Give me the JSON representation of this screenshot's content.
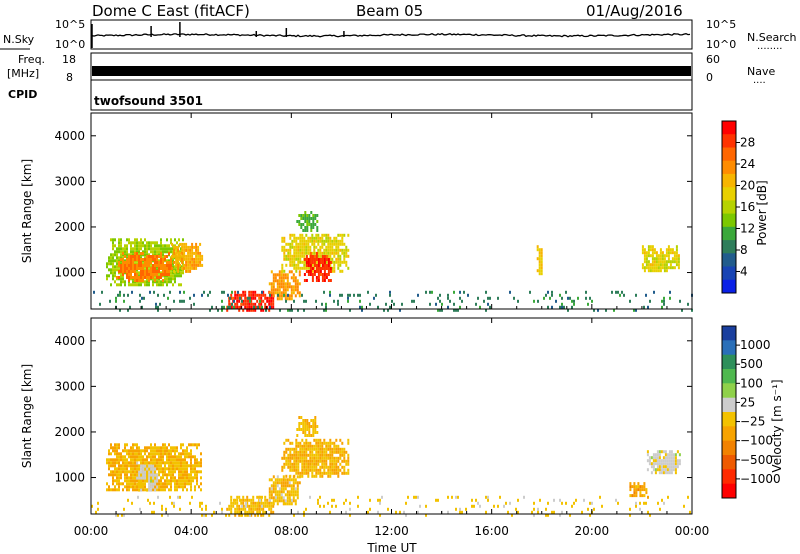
{
  "header": {
    "station": "Dome C East (fitACF)",
    "beam": "Beam 05",
    "date": "01/Aug/2016"
  },
  "strip_nsky": {
    "label": "N.Sky",
    "ticks": [
      "10^5",
      "10^0"
    ],
    "right_ticks": [
      "10^5",
      "10^0"
    ],
    "right_label": "N.Search",
    "right_dots": "........"
  },
  "strip_freq": {
    "label_line1": "Freq.",
    "label_line2": "[MHz]",
    "ticks": [
      "18",
      "8"
    ],
    "right_ticks": [
      "60",
      "0"
    ],
    "right_label": "Nave",
    "right_dots": "...."
  },
  "strip_cpid": {
    "label": "CPID",
    "program": "twofsound 3501"
  },
  "x_axis": {
    "label": "Time UT",
    "ticks": [
      "00:00",
      "04:00",
      "08:00",
      "12:00",
      "16:00",
      "20:00",
      "00:00"
    ]
  },
  "chart_data": [
    {
      "type": "heatmap",
      "quantity": "Power",
      "ylabel": "Slant Range [km]",
      "xlabel": "Time UT",
      "xlim_hours": [
        0,
        24
      ],
      "ylim_km": [
        200,
        4500
      ],
      "yticks": [
        "4000",
        "3000",
        "2000",
        "1000"
      ],
      "colorbar": {
        "label": "Power [dB]",
        "ticks": [
          "28",
          "24",
          "20",
          "16",
          "12",
          "8",
          "4"
        ],
        "range": [
          0,
          30
        ],
        "colors": [
          "#ff0000",
          "#ff3300",
          "#ff6600",
          "#ff8c00",
          "#f7b500",
          "#e8d000",
          "#b6d200",
          "#7cc800",
          "#3aa83a",
          "#2e7d5a",
          "#215c8c",
          "#1844b4",
          "#0a20e6"
        ]
      },
      "regions": [
        {
          "t0": 0.6,
          "t1": 3.7,
          "r0": 700,
          "r1": 1750,
          "v": 14
        },
        {
          "t0": 1.0,
          "t1": 3.2,
          "r0": 850,
          "r1": 1450,
          "v": 23
        },
        {
          "t0": 3.2,
          "t1": 4.4,
          "r0": 1050,
          "r1": 1650,
          "v": 20
        },
        {
          "t0": 5.4,
          "t1": 7.3,
          "r0": 200,
          "r1": 600,
          "v": 27
        },
        {
          "t0": 7.1,
          "t1": 8.3,
          "r0": 400,
          "r1": 1050,
          "v": 21
        },
        {
          "t0": 7.6,
          "t1": 10.3,
          "r0": 1050,
          "r1": 1850,
          "v": 17
        },
        {
          "t0": 8.5,
          "t1": 9.6,
          "r0": 850,
          "r1": 1450,
          "v": 27
        },
        {
          "t0": 8.2,
          "t1": 9.0,
          "r0": 1950,
          "r1": 2350,
          "v": 11
        },
        {
          "t0": 17.8,
          "t1": 18.0,
          "r0": 1000,
          "r1": 1600,
          "v": 18
        },
        {
          "t0": 22.0,
          "t1": 23.5,
          "r0": 1050,
          "r1": 1600,
          "v": 17
        },
        {
          "t0": 0.0,
          "t1": 24.0,
          "r0": 200,
          "r1": 600,
          "v": 8
        }
      ]
    },
    {
      "type": "heatmap",
      "quantity": "Velocity",
      "ylabel": "Slant Range [km]",
      "xlabel": "Time UT",
      "xlim_hours": [
        0,
        24
      ],
      "ylim_km": [
        200,
        4500
      ],
      "yticks": [
        "4000",
        "3000",
        "2000",
        "1000"
      ],
      "colorbar": {
        "label": "Velocity [m s⁻¹]",
        "ticks": [
          "1000",
          "500",
          "100",
          "25",
          "−25",
          "−100",
          "−500",
          "−1000"
        ],
        "range": [
          -1200,
          1200
        ],
        "colors": [
          "#1a3f9e",
          "#2a6fb8",
          "#2e8f5a",
          "#4fb84f",
          "#8fd14a",
          "#cccccc",
          "#f3c200",
          "#f7a300",
          "#f28200",
          "#ee5a00",
          "#ff2a00",
          "#ff0000"
        ]
      },
      "regions": [
        {
          "t0": 0.6,
          "t1": 4.4,
          "r0": 700,
          "r1": 1750,
          "v": -180
        },
        {
          "t0": 1.8,
          "t1": 2.6,
          "r0": 700,
          "r1": 1350,
          "v": 60
        },
        {
          "t0": 5.4,
          "t1": 7.3,
          "r0": 200,
          "r1": 600,
          "v": -150
        },
        {
          "t0": 7.1,
          "t1": 8.3,
          "r0": 400,
          "r1": 1050,
          "v": -120
        },
        {
          "t0": 7.6,
          "t1": 10.3,
          "r0": 1050,
          "r1": 1850,
          "v": -200
        },
        {
          "t0": 8.2,
          "t1": 9.0,
          "r0": 1950,
          "r1": 2350,
          "v": -150
        },
        {
          "t0": 21.5,
          "t1": 22.2,
          "r0": 600,
          "r1": 900,
          "v": -300
        },
        {
          "t0": 22.2,
          "t1": 23.5,
          "r0": 1100,
          "r1": 1600,
          "v": 70
        },
        {
          "t0": 0.0,
          "t1": 24.0,
          "r0": 200,
          "r1": 600,
          "v": -60
        }
      ]
    }
  ]
}
